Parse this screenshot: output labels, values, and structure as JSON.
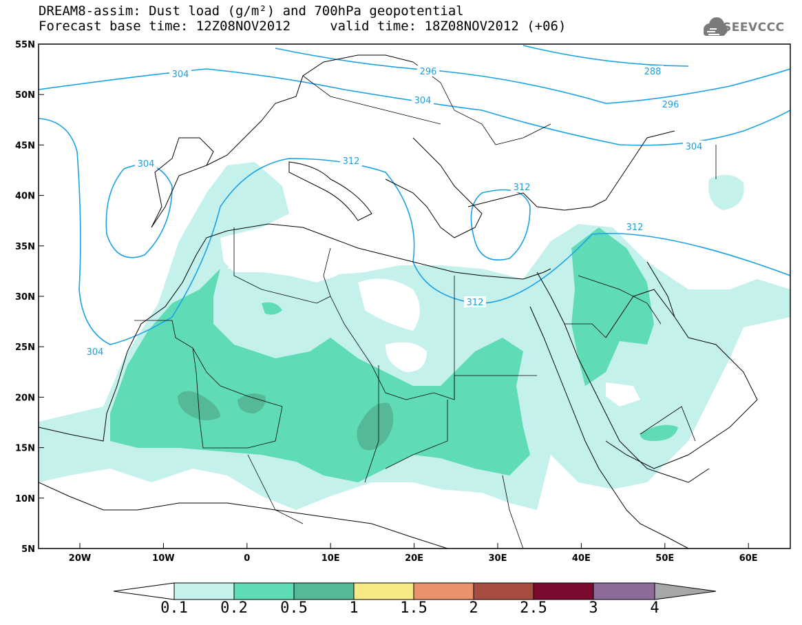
{
  "header": {
    "title_line1": "DREAM8-assim: Dust load (g/m²) and 700hPa geopotential",
    "title_line2": "Forecast base time: 12Z08NOV2012     valid time: 18Z08NOV2012 (+06)"
  },
  "logo": {
    "icon": "cloud-icon",
    "text": "SEEVCCC"
  },
  "map": {
    "lat_labels": [
      "55N",
      "50N",
      "45N",
      "40N",
      "35N",
      "30N",
      "25N",
      "20N",
      "15N",
      "10N",
      "5N"
    ],
    "lon_labels": [
      "20W",
      "10W",
      "0",
      "10E",
      "20E",
      "30E",
      "40E",
      "50E",
      "60E"
    ],
    "contour_labels": [
      "304",
      "296",
      "288",
      "304",
      "296",
      "304",
      "304",
      "312",
      "304",
      "312",
      "312",
      "312"
    ]
  },
  "colorbar": {
    "labels": [
      "0.1",
      "0.2",
      "0.5",
      "1",
      "1.5",
      "2",
      "2.5",
      "3",
      "4"
    ],
    "colors": [
      "#ffffff",
      "#c4f1ec",
      "#5fdcb6",
      "#55b896",
      "#f5ea84",
      "#e8936a",
      "#a74c40",
      "#7a0a2e",
      "#8d6b9a",
      "#a7a7a7"
    ]
  }
}
